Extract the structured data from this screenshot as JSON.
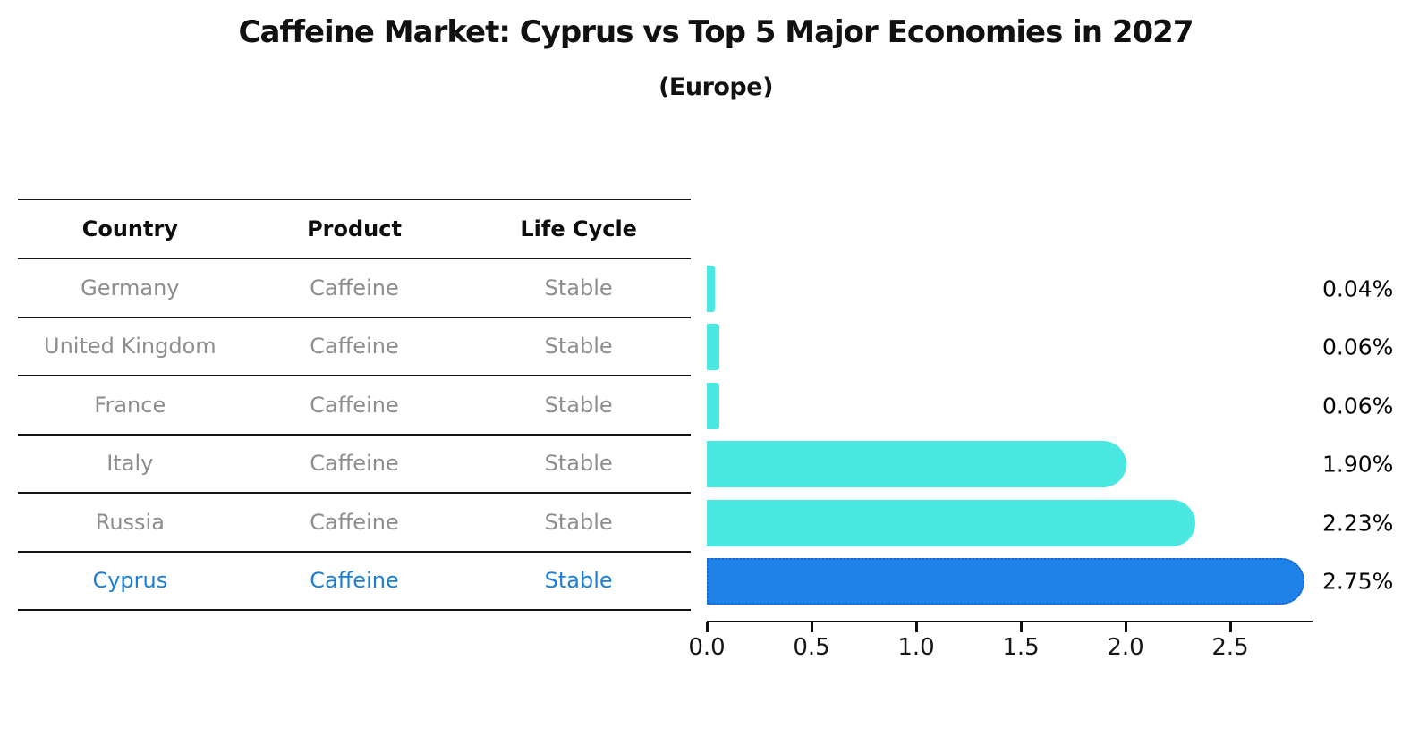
{
  "title": "Caffeine Market: Cyprus vs Top 5 Major Economies in 2027",
  "subtitle": "(Europe)",
  "table": {
    "headers": [
      "Country",
      "Product",
      "Life Cycle"
    ],
    "rows": [
      {
        "country": "Germany",
        "product": "Caffeine",
        "life_cycle": "Stable",
        "highlight": false
      },
      {
        "country": "United Kingdom",
        "product": "Caffeine",
        "life_cycle": "Stable",
        "highlight": false
      },
      {
        "country": "France",
        "product": "Caffeine",
        "life_cycle": "Stable",
        "highlight": false
      },
      {
        "country": "Italy",
        "product": "Caffeine",
        "life_cycle": "Stable",
        "highlight": false
      },
      {
        "country": "Russia",
        "product": "Caffeine",
        "life_cycle": "Stable",
        "highlight": false
      },
      {
        "country": "Cyprus",
        "product": "Caffeine",
        "life_cycle": "Stable",
        "highlight": true
      }
    ]
  },
  "chart_data": {
    "type": "bar",
    "orientation": "horizontal",
    "title": "Caffeine Market: Cyprus vs Top 5 Major Economies in 2027",
    "subtitle": "(Europe)",
    "categories": [
      "Germany",
      "United Kingdom",
      "France",
      "Italy",
      "Russia",
      "Cyprus"
    ],
    "values": [
      0.04,
      0.06,
      0.06,
      1.9,
      2.23,
      2.75
    ],
    "value_labels": [
      "0.04%",
      "0.06%",
      "0.06%",
      "1.90%",
      "2.23%",
      "2.75%"
    ],
    "unit": "%",
    "highlight_index": 5,
    "xlim": [
      0,
      2.89
    ],
    "xticks": [
      0.0,
      0.5,
      1.0,
      1.5,
      2.0,
      2.5
    ],
    "xtick_labels": [
      "0.0",
      "0.5",
      "1.0",
      "1.5",
      "2.0",
      "2.5"
    ],
    "grid": false,
    "colors": {
      "bar": "#4AE8E0",
      "highlight_bar": "#1E82E8",
      "highlight_bar_border": "#1A64D6",
      "row_text": "#8E8E8E",
      "highlight_text": "#1E7FD2",
      "axis_text": "#161616"
    }
  }
}
